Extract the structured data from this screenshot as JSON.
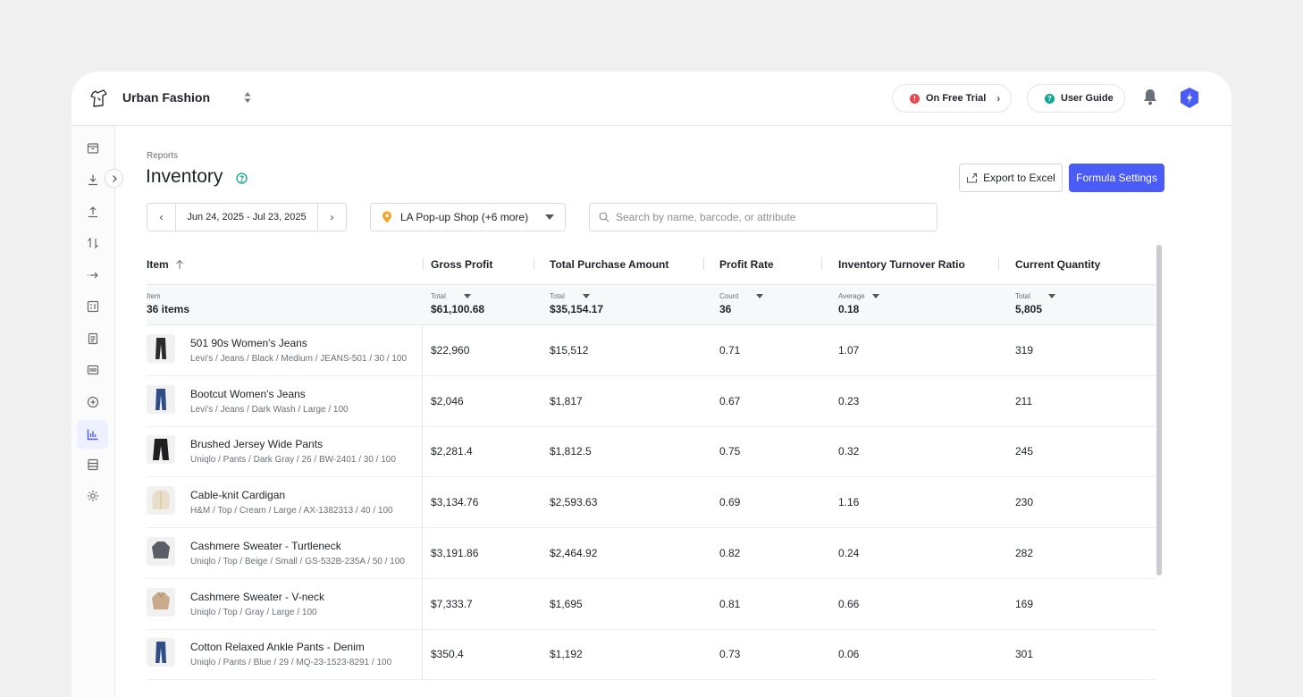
{
  "topbar": {
    "brand": "Urban Fashion",
    "trial_label": "On Free Trial",
    "guide_label": "User Guide",
    "colors": {
      "trial_dot": "#e5484d",
      "guide_dot": "#12a594",
      "shield": "#4a5cf5"
    }
  },
  "sidebar": {
    "icons": [
      "package-icon",
      "download-icon",
      "upload-icon",
      "transfer-icon",
      "arrow-right-icon",
      "calculator-icon",
      "document-icon",
      "barcode-icon",
      "add-circle-icon",
      "chart-icon",
      "database-icon",
      "settings-icon"
    ],
    "active": "chart-icon"
  },
  "header": {
    "breadcrumb": "Reports",
    "title": "Inventory",
    "export_label": "Export to Excel",
    "formula_label": "Formula Settings"
  },
  "filters": {
    "date_range": "Jun 24, 2025 - Jul 23, 2025",
    "location": "LA Pop-up Shop (+6 more)",
    "search_placeholder": "Search by name, barcode, or attribute"
  },
  "table": {
    "columns": [
      "Item",
      "Gross Profit",
      "Total Purchase Amount",
      "Profit Rate",
      "Inventory Turnover Ratio",
      "Current Quantity"
    ],
    "summary": [
      {
        "label": "Item",
        "value": "36 items"
      },
      {
        "label": "Total",
        "value": "$61,100.68"
      },
      {
        "label": "Total",
        "value": "$35,154.17"
      },
      {
        "label": "Count",
        "value": "36"
      },
      {
        "label": "Average",
        "value": "0.18"
      },
      {
        "label": "Total",
        "value": "5,805"
      }
    ],
    "rows": [
      {
        "name": "501 90s Women's Jeans",
        "meta": "Levi's / Jeans / Black / Medium / JEANS-501 / 30 / 100",
        "gross": "$22,960",
        "purchase": "$15,512",
        "rate": "0.71",
        "turnover": "1.07",
        "qty": "319",
        "thumb": "jeans-black"
      },
      {
        "name": "Bootcut Women's Jeans",
        "meta": "Levi's / Jeans / Dark Wash / Large / 100",
        "gross": "$2,046",
        "purchase": "$1,817",
        "rate": "0.67",
        "turnover": "0.23",
        "qty": "211",
        "thumb": "jeans-blue"
      },
      {
        "name": "Brushed Jersey Wide Pants",
        "meta": "Uniqlo / Pants / Dark Gray / 26 / BW-2401 / 30 / 100",
        "gross": "$2,281.4",
        "purchase": "$1,812.5",
        "rate": "0.75",
        "turnover": "0.32",
        "qty": "245",
        "thumb": "pants-black"
      },
      {
        "name": "Cable-knit Cardigan",
        "meta": "H&M / Top / Cream / Large / AX-1382313 / 40 / 100",
        "gross": "$3,134.76",
        "purchase": "$2,593.63",
        "rate": "0.69",
        "turnover": "1.16",
        "qty": "230",
        "thumb": "cardigan-cream"
      },
      {
        "name": "Cashmere Sweater - Turtleneck",
        "meta": "Uniqlo / Top / Beige / Small / GS-532B-235A / 50 / 100",
        "gross": "$3,191.86",
        "purchase": "$2,464.92",
        "rate": "0.82",
        "turnover": "0.24",
        "qty": "282",
        "thumb": "sweater-gray"
      },
      {
        "name": "Cashmere Sweater - V-neck",
        "meta": "Uniqlo / Top / Gray / Large / 100",
        "gross": "$7,333.7",
        "purchase": "$1,695",
        "rate": "0.81",
        "turnover": "0.66",
        "qty": "169",
        "thumb": "sweater-beige"
      },
      {
        "name": "Cotton Relaxed Ankle Pants - Denim",
        "meta": "Uniqlo / Pants / Blue / 29 / MQ-23-1523-8291 / 100",
        "gross": "$350.4",
        "purchase": "$1,192",
        "rate": "0.73",
        "turnover": "0.06",
        "qty": "301",
        "thumb": "jeans-blue"
      }
    ]
  }
}
